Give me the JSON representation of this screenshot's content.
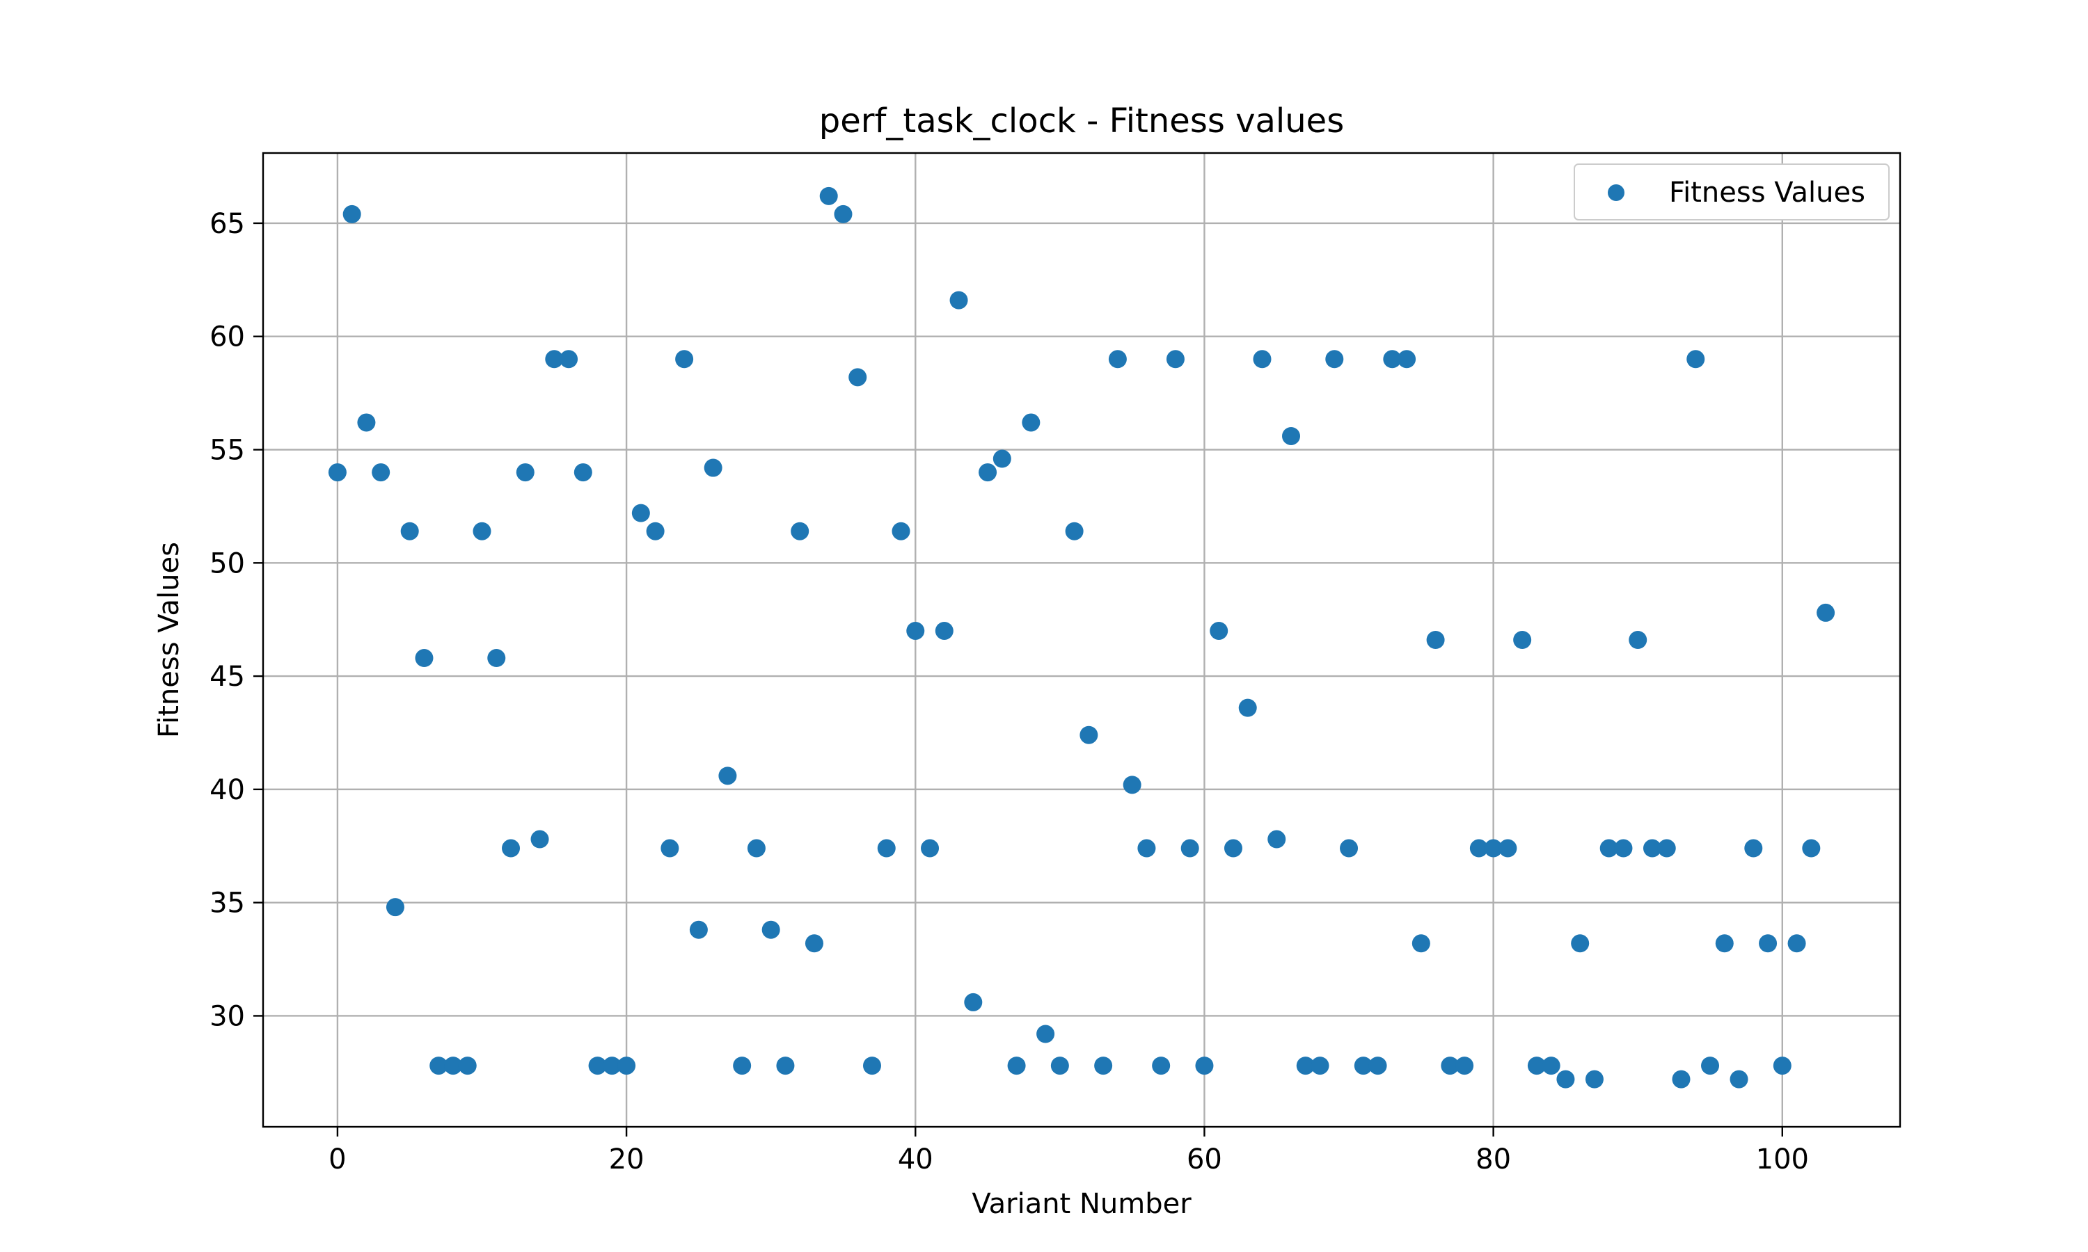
{
  "chart_data": {
    "type": "scatter",
    "title": "perf_task_clock - Fitness values",
    "xlabel": "Variant Number",
    "ylabel": "Fitness Values",
    "xlim": [
      -5.15,
      108.15
    ],
    "ylim": [
      25.1,
      68.1
    ],
    "xticks": [
      0,
      20,
      40,
      60,
      80,
      100
    ],
    "yticks": [
      30,
      35,
      40,
      45,
      50,
      55,
      60,
      65
    ],
    "grid": true,
    "legend_position": "top-right",
    "series": [
      {
        "name": "Fitness Values",
        "color": "#1f77b4",
        "x": [
          0,
          1,
          2,
          3,
          4,
          5,
          6,
          7,
          8,
          9,
          10,
          11,
          12,
          13,
          14,
          15,
          16,
          17,
          18,
          19,
          20,
          21,
          22,
          23,
          24,
          25,
          26,
          27,
          28,
          29,
          30,
          31,
          32,
          33,
          34,
          35,
          36,
          37,
          38,
          39,
          40,
          41,
          42,
          43,
          44,
          45,
          46,
          47,
          48,
          49,
          50,
          51,
          52,
          53,
          54,
          55,
          56,
          57,
          58,
          59,
          60,
          61,
          62,
          63,
          64,
          65,
          66,
          67,
          68,
          69,
          70,
          71,
          72,
          73,
          74,
          75,
          76,
          77,
          78,
          79,
          80,
          81,
          82,
          83,
          84,
          85,
          86,
          87,
          88,
          89,
          90,
          91,
          92,
          93,
          94,
          95,
          96,
          97,
          98,
          99,
          100,
          101,
          102,
          103
        ],
        "y": [
          54.0,
          65.4,
          56.2,
          54.0,
          34.8,
          51.4,
          45.8,
          27.8,
          27.8,
          27.8,
          51.4,
          45.8,
          37.4,
          54.0,
          37.8,
          59.0,
          59.0,
          54.0,
          27.8,
          27.8,
          27.8,
          52.2,
          51.4,
          37.4,
          59.0,
          33.8,
          54.2,
          40.6,
          27.8,
          37.4,
          33.8,
          27.8,
          51.4,
          33.2,
          66.2,
          65.4,
          58.2,
          27.8,
          37.4,
          51.4,
          47.0,
          37.4,
          47.0,
          61.6,
          30.6,
          54.0,
          54.6,
          27.8,
          56.2,
          29.2,
          27.8,
          51.4,
          42.4,
          27.8,
          59.0,
          40.2,
          37.4,
          27.8,
          59.0,
          37.4,
          27.8,
          47.0,
          37.4,
          43.6,
          59.0,
          37.8,
          55.6,
          27.8,
          27.8,
          59.0,
          37.4,
          27.8,
          27.8,
          59.0,
          59.0,
          33.2,
          46.6,
          27.8,
          27.8,
          37.4,
          37.4,
          37.4,
          46.6,
          27.8,
          27.8,
          27.2,
          33.2,
          27.2,
          37.4,
          37.4,
          46.6,
          37.4,
          37.4,
          27.2,
          59.0,
          27.8,
          33.2,
          27.2,
          37.4,
          33.2,
          27.8,
          33.2,
          37.4,
          47.8
        ]
      }
    ]
  }
}
